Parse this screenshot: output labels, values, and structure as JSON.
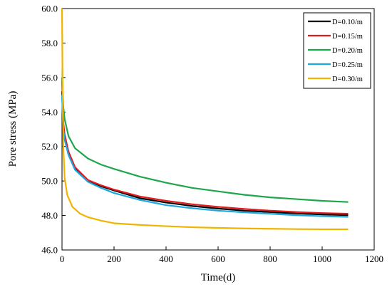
{
  "chart_data": {
    "type": "line",
    "title": "",
    "xlabel": "Time(d)",
    "ylabel": "Pore stress (MPa)",
    "xlim": [
      0,
      1200
    ],
    "ylim": [
      46.0,
      60.0
    ],
    "xticks": [
      "0",
      "200",
      "400",
      "600",
      "800",
      "1000",
      "1200"
    ],
    "yticks": [
      "46.0",
      "48.0",
      "50.0",
      "52.0",
      "54.0",
      "56.0",
      "58.0",
      "60.0"
    ],
    "grid": false,
    "legend_position": "top-right",
    "series": [
      {
        "name": "D=0.10/m",
        "color": "#000000",
        "points": [
          [
            0,
            55.2
          ],
          [
            5,
            53.2
          ],
          [
            10,
            52.6
          ],
          [
            25,
            51.6
          ],
          [
            50,
            50.7
          ],
          [
            100,
            50.0
          ],
          [
            150,
            49.7
          ],
          [
            200,
            49.45
          ],
          [
            300,
            49.0
          ],
          [
            400,
            48.75
          ],
          [
            500,
            48.55
          ],
          [
            600,
            48.4
          ],
          [
            700,
            48.28
          ],
          [
            800,
            48.2
          ],
          [
            900,
            48.12
          ],
          [
            1000,
            48.06
          ],
          [
            1100,
            48.02
          ]
        ]
      },
      {
        "name": "D=0.15/m",
        "color": "#e41a1c",
        "points": [
          [
            0,
            55.8
          ],
          [
            5,
            53.4
          ],
          [
            10,
            52.7
          ],
          [
            25,
            51.7
          ],
          [
            50,
            50.8
          ],
          [
            100,
            50.05
          ],
          [
            150,
            49.75
          ],
          [
            200,
            49.5
          ],
          [
            300,
            49.1
          ],
          [
            400,
            48.85
          ],
          [
            500,
            48.65
          ],
          [
            600,
            48.5
          ],
          [
            700,
            48.38
          ],
          [
            800,
            48.28
          ],
          [
            900,
            48.2
          ],
          [
            1000,
            48.14
          ],
          [
            1100,
            48.1
          ]
        ]
      },
      {
        "name": "D=0.20/m",
        "color": "#1fa64a",
        "points": [
          [
            0,
            56.0
          ],
          [
            5,
            54.3
          ],
          [
            10,
            53.6
          ],
          [
            25,
            52.6
          ],
          [
            50,
            51.9
          ],
          [
            100,
            51.3
          ],
          [
            150,
            50.95
          ],
          [
            200,
            50.7
          ],
          [
            300,
            50.25
          ],
          [
            400,
            49.9
          ],
          [
            500,
            49.6
          ],
          [
            600,
            49.4
          ],
          [
            700,
            49.2
          ],
          [
            800,
            49.05
          ],
          [
            900,
            48.95
          ],
          [
            1000,
            48.85
          ],
          [
            1100,
            48.78
          ]
        ]
      },
      {
        "name": "D=0.25/m",
        "color": "#1ca8e0",
        "points": [
          [
            0,
            55.0
          ],
          [
            5,
            53.0
          ],
          [
            10,
            52.4
          ],
          [
            25,
            51.5
          ],
          [
            50,
            50.65
          ],
          [
            100,
            49.95
          ],
          [
            150,
            49.6
          ],
          [
            200,
            49.3
          ],
          [
            300,
            48.9
          ],
          [
            400,
            48.6
          ],
          [
            500,
            48.42
          ],
          [
            600,
            48.28
          ],
          [
            700,
            48.18
          ],
          [
            800,
            48.1
          ],
          [
            900,
            48.02
          ],
          [
            1000,
            47.96
          ],
          [
            1100,
            47.92
          ]
        ]
      },
      {
        "name": "D=0.30/m",
        "color": "#f0b400",
        "points": [
          [
            0,
            60.0
          ],
          [
            2,
            56.0
          ],
          [
            5,
            52.0
          ],
          [
            10,
            50.2
          ],
          [
            20,
            49.2
          ],
          [
            40,
            48.5
          ],
          [
            70,
            48.1
          ],
          [
            100,
            47.9
          ],
          [
            150,
            47.7
          ],
          [
            200,
            47.55
          ],
          [
            300,
            47.45
          ],
          [
            400,
            47.38
          ],
          [
            500,
            47.32
          ],
          [
            600,
            47.28
          ],
          [
            700,
            47.25
          ],
          [
            800,
            47.23
          ],
          [
            900,
            47.21
          ],
          [
            1000,
            47.2
          ],
          [
            1100,
            47.2
          ]
        ]
      }
    ]
  }
}
